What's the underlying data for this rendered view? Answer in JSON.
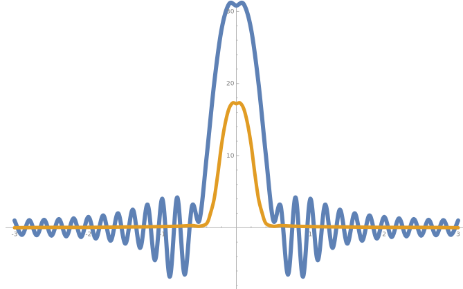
{
  "chart_data": {
    "type": "line",
    "title": "",
    "xlabel": "",
    "ylabel": "",
    "xlim": [
      -3,
      3
    ],
    "ylim": [
      -8.5,
      31
    ],
    "grid": false,
    "legend": "none",
    "x_ticks": [
      {
        "value": -3,
        "label": "-3"
      },
      {
        "value": -2,
        "label": "-2"
      },
      {
        "value": -1,
        "label": "-1"
      },
      {
        "value": 1,
        "label": "1"
      },
      {
        "value": 2,
        "label": "2"
      },
      {
        "value": 3,
        "label": "3"
      }
    ],
    "y_ticks": [
      {
        "value": 10,
        "label": "10"
      },
      {
        "value": 20,
        "label": "20"
      },
      {
        "value": 30,
        "label": "30"
      }
    ],
    "x_minor_step": 0.2,
    "y_minor_step": 2,
    "series": [
      {
        "color": "#5e81b5",
        "stroke_width": 6,
        "x": [
          -3.0,
          -2.9,
          -2.8,
          -2.7,
          -2.6,
          -2.5,
          -2.4,
          -2.3,
          -2.2,
          -2.1,
          -2.0,
          -1.9,
          -1.8,
          -1.7,
          -1.6,
          -1.5,
          -1.4,
          -1.3,
          -1.2,
          -1.1,
          -1.0,
          -0.9,
          -0.8,
          -0.7,
          -0.6,
          -0.5,
          -0.4,
          -0.3,
          -0.2,
          -0.1,
          0.0,
          0.1,
          0.2,
          0.3,
          0.4,
          0.5,
          0.6,
          0.7,
          0.8,
          0.9,
          1.0,
          1.1,
          1.2,
          1.3,
          1.4,
          1.5,
          1.6,
          1.7,
          1.8,
          1.9,
          2.0,
          2.1,
          2.2,
          2.3,
          2.4,
          2.5,
          2.6,
          2.7,
          2.8,
          2.9,
          3.0
        ],
        "values": [
          1.0,
          -1.0,
          1.05,
          -1.05,
          1.1,
          -1.1,
          1.2,
          -1.2,
          1.3,
          -1.3,
          1.5,
          -1.5,
          1.7,
          -1.8,
          2.0,
          -2.2,
          2.5,
          -2.8,
          3.2,
          -4.5,
          4.0,
          -6.8,
          4.2,
          -6.5,
          3.0,
          1.0,
          10.0,
          20.0,
          27.5,
          31.0,
          30.8,
          31.0,
          27.5,
          20.0,
          10.0,
          1.0,
          3.0,
          -6.5,
          4.2,
          -6.8,
          4.0,
          -4.5,
          3.2,
          -2.8,
          2.5,
          -2.2,
          2.0,
          -1.8,
          1.7,
          -1.5,
          1.5,
          -1.3,
          1.3,
          -1.2,
          1.2,
          -1.1,
          1.1,
          -1.05,
          1.05,
          -1.0,
          1.0
        ]
      },
      {
        "color": "#e19c24",
        "stroke_width": 5,
        "x": [
          -3.0,
          -2.5,
          -2.0,
          -1.5,
          -1.0,
          -0.8,
          -0.6,
          -0.5,
          -0.4,
          -0.35,
          -0.3,
          -0.25,
          -0.2,
          -0.15,
          -0.1,
          -0.05,
          0.0,
          0.05,
          0.1,
          0.15,
          0.2,
          0.25,
          0.3,
          0.35,
          0.4,
          0.5,
          0.6,
          0.8,
          1.0,
          1.5,
          2.0,
          2.5,
          3.0
        ],
        "values": [
          0.0,
          0.05,
          0.05,
          0.1,
          0.15,
          0.2,
          0.3,
          0.2,
          0.6,
          2.0,
          4.0,
          7.5,
          11.5,
          14.5,
          16.5,
          17.3,
          17.2,
          17.3,
          16.5,
          14.5,
          11.5,
          7.5,
          4.0,
          2.0,
          0.6,
          0.2,
          0.3,
          0.2,
          0.15,
          0.1,
          0.05,
          0.05,
          0.0
        ]
      }
    ]
  }
}
